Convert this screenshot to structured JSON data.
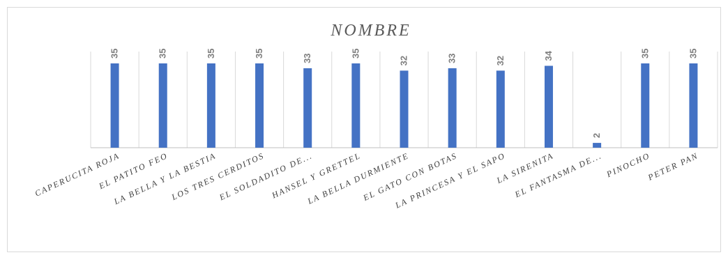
{
  "chart_data": {
    "type": "bar",
    "title": "NOMBRE",
    "xlabel": "",
    "ylabel": "",
    "categories": [
      "CAPERUCITA ROJA",
      "EL PATITO FEO",
      "LA BELLA Y LA BESTIA",
      "LOS TRES CERDITOS",
      "EL SOLDADITO DE...",
      "HANSEL Y GRETTEL",
      "LA BELLA DURMIENTE",
      "EL GATO CON BOTAS",
      "LA PRINCESA Y EL SAPO",
      "LA SIRENITA",
      "EL FANTASMA DE...",
      "PINOCHO",
      "PETER PAN"
    ],
    "values": [
      35,
      35,
      35,
      35,
      33,
      35,
      32,
      33,
      32,
      34,
      2,
      35,
      35
    ],
    "ylim": [
      0,
      35
    ],
    "grid": "vertical separators",
    "legend": "none",
    "colors": {
      "bar": "#4472c4",
      "grid": "#d9d9d9",
      "axis": "#bfbfbf",
      "label": "#7f7f7f"
    }
  }
}
